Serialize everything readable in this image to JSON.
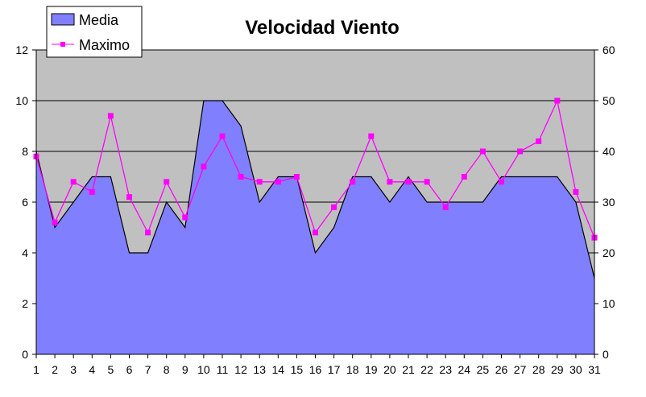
{
  "chart_data": {
    "type": "area",
    "title": "Velocidad Viento",
    "x": [
      1,
      2,
      3,
      4,
      5,
      6,
      7,
      8,
      9,
      10,
      11,
      12,
      13,
      14,
      15,
      16,
      17,
      18,
      19,
      20,
      21,
      22,
      23,
      24,
      25,
      26,
      27,
      28,
      29,
      30,
      31
    ],
    "y_left_ticks": [
      0,
      2,
      4,
      6,
      8,
      10,
      12
    ],
    "y_right_ticks": [
      0,
      10,
      20,
      30,
      40,
      50,
      60
    ],
    "ylim_left": [
      0,
      12
    ],
    "ylim_right": [
      0,
      60
    ],
    "grid": true,
    "legend_position": "top-left",
    "series": [
      {
        "name": "Media",
        "type": "area",
        "axis": "left",
        "values": [
          8,
          5,
          6,
          7,
          7,
          4,
          4,
          6,
          5,
          10,
          10,
          9,
          6,
          7,
          7,
          4,
          5,
          7,
          7,
          6,
          7,
          6,
          6,
          6,
          6,
          7,
          7,
          7,
          7,
          6,
          3
        ]
      },
      {
        "name": "Maximo",
        "type": "line",
        "axis": "right",
        "values": [
          39,
          26,
          34,
          32,
          47,
          31,
          24,
          34,
          27,
          37,
          43,
          35,
          34,
          34,
          35,
          24,
          29,
          34,
          43,
          34,
          34,
          34,
          29,
          35,
          40,
          34,
          40,
          42,
          50,
          32,
          23
        ]
      }
    ]
  },
  "colors": {
    "plot_background": "#C0C0C0",
    "area_fill": "#8080FF",
    "area_stroke": "#000000",
    "line_color": "#FF00FF",
    "grid": "#000000"
  }
}
